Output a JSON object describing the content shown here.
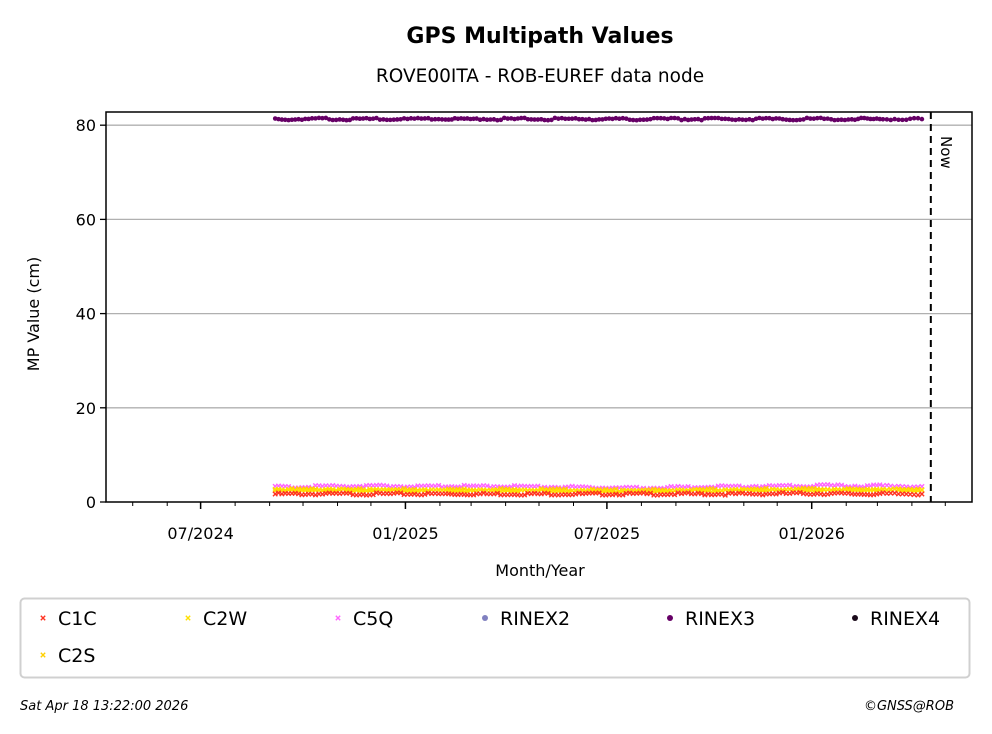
{
  "chart_data": {
    "type": "scatter",
    "title": "GPS Multipath Values",
    "subtitle": "ROVE00ITA - ROB-EUREF data node",
    "xlabel": "Month/Year",
    "ylabel": "MP Value (cm)",
    "xlim": [
      "2024-04-07",
      "2026-05-25"
    ],
    "ylim": [
      0,
      82.8
    ],
    "yticks": [
      0,
      20,
      40,
      60,
      80
    ],
    "xtick_labels": [
      {
        "date": "2024-07-01",
        "label": "07/2024"
      },
      {
        "date": "2025-01-01",
        "label": "01/2025"
      },
      {
        "date": "2025-07-01",
        "label": "07/2025"
      },
      {
        "date": "2026-01-01",
        "label": "01/2026"
      }
    ],
    "grid": "y",
    "now_line": {
      "date": "2026-04-18",
      "label": "Now"
    },
    "dates": [
      "2024-09-06",
      "2024-10-06",
      "2024-11-06",
      "2024-12-06",
      "2025-01-06",
      "2025-02-06",
      "2025-03-06",
      "2025-04-06",
      "2025-05-06",
      "2025-06-06",
      "2025-07-06",
      "2025-08-06",
      "2025-09-06",
      "2025-10-06",
      "2025-11-06",
      "2025-12-06",
      "2026-01-06",
      "2026-02-06",
      "2026-03-06",
      "2026-04-10"
    ],
    "series": [
      {
        "name": "C1C",
        "color": "#ff3322",
        "marker": "x",
        "values": [
          1.7,
          1.7,
          1.7,
          1.7,
          1.7,
          1.7,
          1.7,
          1.7,
          1.7,
          1.7,
          1.7,
          1.7,
          1.7,
          1.7,
          1.7,
          1.8,
          1.8,
          1.7,
          1.7,
          1.7
        ]
      },
      {
        "name": "C2W",
        "color": "#ffe000",
        "marker": "x",
        "values": [
          2.5,
          2.5,
          2.5,
          2.5,
          2.4,
          2.4,
          2.4,
          2.4,
          2.4,
          2.3,
          2.3,
          2.3,
          2.4,
          2.4,
          2.5,
          2.5,
          2.5,
          2.5,
          2.5,
          2.5
        ]
      },
      {
        "name": "C5Q",
        "color": "#ff66ff",
        "marker": "x",
        "values": [
          3.2,
          3.2,
          3.4,
          3.4,
          3.3,
          3.3,
          3.3,
          3.3,
          3.2,
          3.1,
          3.0,
          3.0,
          3.1,
          3.2,
          3.3,
          3.4,
          3.5,
          3.4,
          3.4,
          3.3
        ]
      },
      {
        "name": "RINEX2",
        "color": "#8080c0",
        "marker": "o",
        "values": []
      },
      {
        "name": "RINEX3",
        "color": "#660066",
        "marker": "o",
        "values": [
          81.3,
          81.3,
          81.3,
          81.3,
          81.3,
          81.3,
          81.3,
          81.3,
          81.3,
          81.3,
          81.3,
          81.3,
          81.3,
          81.3,
          81.3,
          81.3,
          81.3,
          81.3,
          81.3,
          81.3
        ]
      },
      {
        "name": "RINEX4",
        "color": "#1a0a1a",
        "marker": "o",
        "values": []
      },
      {
        "name": "C2S",
        "color": "#ffd000",
        "marker": "x",
        "values": [
          2.6,
          2.6,
          2.6,
          2.6,
          2.6,
          2.6,
          2.6,
          2.6,
          2.6,
          2.5,
          2.5,
          2.5,
          2.6,
          2.6,
          2.6,
          2.7,
          2.7,
          2.6,
          2.6,
          2.6
        ]
      }
    ]
  },
  "footer": {
    "timestamp": "Sat Apr 18 13:22:00 2026",
    "copyright": "©GNSS@ROB"
  }
}
